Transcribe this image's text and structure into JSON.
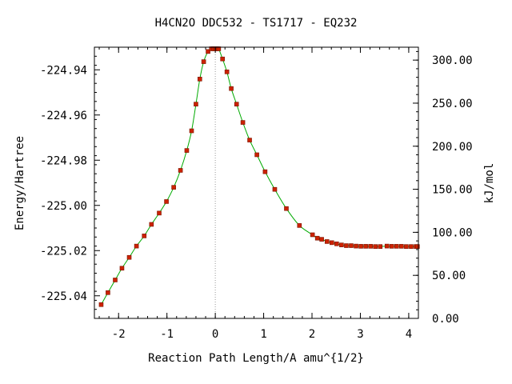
{
  "chart_data": {
    "type": "scatter",
    "title": "H4CN2O   DDC532 - TS1717 - EQ232",
    "xlabel": "Reaction Path Length/A amu^{1/2}",
    "ylabel": "Energy/Hartree",
    "y2label": "kJ/mol",
    "xlim": [
      -2.5,
      4.2
    ],
    "ylim": [
      -225.05,
      -224.93
    ],
    "y2lim": [
      0,
      315.0
    ],
    "x_ticks": [
      -2,
      -1,
      0,
      1,
      2,
      3,
      4
    ],
    "x_tick_labels": [
      "-2",
      "-1",
      "0",
      "1",
      "2",
      "3",
      "4"
    ],
    "y_ticks": [
      -224.94,
      -224.96,
      -224.98,
      -225.0,
      -225.02,
      -225.04
    ],
    "y_tick_labels": [
      "-224.94",
      "-224.96",
      "-224.98",
      "-225.00",
      "-225.02",
      "-225.04"
    ],
    "y2_ticks": [
      0,
      50,
      100,
      150,
      200,
      250,
      300
    ],
    "y2_tick_labels": [
      "0.00",
      "50.00",
      "100.00",
      "150.00",
      "200.00",
      "250.00",
      "300.00"
    ],
    "ts_x": 0,
    "series": [
      {
        "x": [
          -2.36,
          -2.22,
          -2.07,
          -1.93,
          -1.78,
          -1.63,
          -1.47,
          -1.32,
          -1.16,
          -1.01,
          -0.86,
          -0.72,
          -0.59,
          -0.49,
          -0.4,
          -0.32,
          -0.24,
          -0.15,
          -0.08,
          -0.04,
          0.0,
          0.04,
          0.07,
          0.15,
          0.24,
          0.33,
          0.44,
          0.57,
          0.71,
          0.86,
          1.03,
          1.23,
          1.47,
          1.74,
          2.01,
          2.11,
          2.2,
          2.31,
          2.41,
          2.51,
          2.61,
          2.71,
          2.81,
          2.91,
          3.01,
          3.11,
          3.21,
          3.31,
          3.41,
          3.55,
          3.65,
          3.75,
          3.85,
          3.95,
          4.05,
          4.15,
          4.18
        ],
        "y": [
          -225.0439,
          -225.0386,
          -225.033,
          -225.0278,
          -225.023,
          -225.018,
          -225.0135,
          -225.0084,
          -225.0034,
          -224.9983,
          -224.992,
          -224.9845,
          -224.9757,
          -224.967,
          -224.9552,
          -224.9441,
          -224.9364,
          -224.9319,
          -224.9307,
          -224.9307,
          -224.9307,
          -224.9307,
          -224.9307,
          -224.9352,
          -224.9409,
          -224.9483,
          -224.9552,
          -224.9633,
          -224.9711,
          -224.9776,
          -224.9851,
          -224.9929,
          -225.0014,
          -225.0089,
          -225.013,
          -225.0145,
          -225.015,
          -225.016,
          -225.0165,
          -225.017,
          -225.0175,
          -225.0178,
          -225.0178,
          -225.018,
          -225.0181,
          -225.0181,
          -225.0181,
          -225.0182,
          -225.0182,
          -225.018,
          -225.0181,
          -225.0181,
          -225.0181,
          -225.0182,
          -225.0182,
          -225.0182,
          -225.0182
        ]
      }
    ],
    "colors": {
      "curve": "#00aa00",
      "marker": "#cc2200",
      "ts_line": "#999999"
    }
  }
}
